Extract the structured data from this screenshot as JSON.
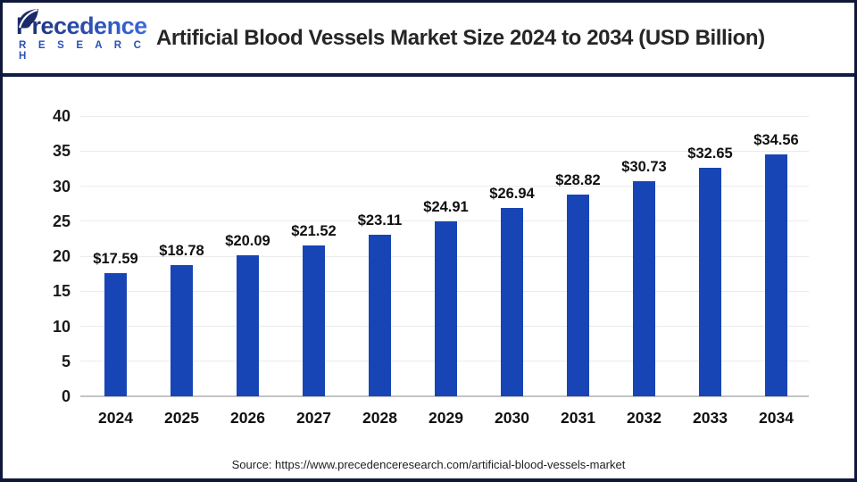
{
  "header": {
    "logo": {
      "name": "Precedence",
      "sub": "R E S E A R C H"
    },
    "title": "Artificial Blood Vessels Market Size 2024 to 2034 (USD Billion)"
  },
  "chart_data": {
    "type": "bar",
    "title": "Artificial Blood Vessels Market Size 2024 to 2034 (USD Billion)",
    "categories": [
      "2024",
      "2025",
      "2026",
      "2027",
      "2028",
      "2029",
      "2030",
      "2031",
      "2032",
      "2033",
      "2034"
    ],
    "values": [
      17.59,
      18.78,
      20.09,
      21.52,
      23.11,
      24.91,
      26.94,
      28.82,
      30.73,
      32.65,
      34.56
    ],
    "value_labels": [
      "$17.59",
      "$18.78",
      "$20.09",
      "$21.52",
      "$23.11",
      "$24.91",
      "$26.94",
      "$28.82",
      "$30.73",
      "$32.65",
      "$34.56"
    ],
    "xlabel": "",
    "ylabel": "",
    "unit": "USD Billion",
    "ylim": [
      0,
      40
    ],
    "y_ticks": [
      0,
      5,
      10,
      15,
      20,
      25,
      30,
      35,
      40
    ],
    "grid": "horizontal",
    "legend": "none",
    "bar_color": "#1745b5"
  },
  "footer": {
    "source": "Source: https://www.precedenceresearch.com/artificial-blood-vessels-market"
  },
  "colors": {
    "bar": "#1745b5",
    "frame": "#0f1839",
    "separator": "#111c44",
    "logo_navy": "#1b2a68",
    "logo_blue": "#3b6ae0",
    "research_blue": "#2b50b5",
    "gridline": "#ebebeb",
    "axis_line": "#c4c4c4"
  }
}
